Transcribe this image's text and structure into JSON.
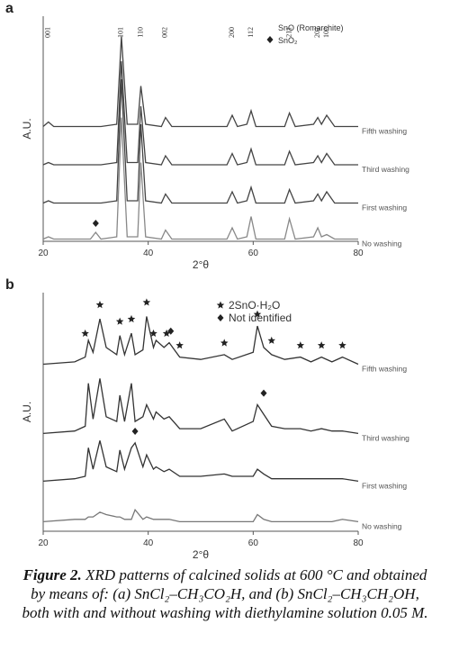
{
  "chart_data": [
    {
      "type": "line",
      "panel": "a",
      "x_label": "2°θ",
      "y_label": "A.U.",
      "xlim": [
        20,
        80
      ],
      "ylim": [
        0,
        100
      ],
      "xticks": [
        20,
        40,
        60,
        80
      ],
      "legend": [
        "SnO (Romarchite)",
        "SnO₂"
      ],
      "peak_labels": [
        {
          "text": "001",
          "x": 21
        },
        {
          "text": "101",
          "x": 34.9
        },
        {
          "text": "110",
          "x": 38.6
        },
        {
          "text": "002",
          "x": 43.3
        },
        {
          "text": "200",
          "x": 56
        },
        {
          "text": "112",
          "x": 59.6
        },
        {
          "text": "211",
          "x": 66.9
        },
        {
          "text": "202",
          "x": 72.3
        },
        {
          "text": "103",
          "x": 74
        }
      ],
      "markers": [
        {
          "x": 30,
          "y": 6,
          "shape": "diamond"
        }
      ],
      "x": [
        20,
        21,
        22,
        29,
        30,
        31,
        34,
        34.9,
        36,
        38,
        38.6,
        39.5,
        42.5,
        43.3,
        44.5,
        55,
        56,
        57,
        58.8,
        59.6,
        60.5,
        66,
        66.9,
        68,
        71.5,
        72.3,
        73,
        74,
        75.5,
        80
      ],
      "series": [
        {
          "name": "Fifth washing",
          "color": "#444444",
          "values": [
            51,
            53,
            51,
            51,
            51,
            51,
            52,
            91,
            52,
            52,
            69,
            52,
            51,
            55,
            51,
            51,
            56,
            51,
            52,
            58,
            51,
            51,
            57,
            51,
            52,
            55,
            52,
            56,
            51,
            51
          ]
        },
        {
          "name": "Third washing",
          "color": "#444444",
          "values": [
            34,
            35,
            34,
            34,
            34,
            34,
            35,
            80,
            35,
            35,
            60,
            35,
            34,
            38,
            34,
            34,
            39,
            34,
            35,
            41,
            34,
            34,
            40,
            34,
            35,
            38,
            35,
            39,
            34,
            34
          ]
        },
        {
          "name": "First washing",
          "color": "#444444",
          "values": [
            17,
            18,
            17,
            17,
            17,
            17,
            18,
            72,
            18,
            18,
            52,
            18,
            17,
            21,
            17,
            17,
            22,
            17,
            18,
            24,
            17,
            17,
            23,
            17,
            18,
            21,
            18,
            22,
            17,
            17
          ]
        },
        {
          "name": "No washing",
          "color": "#888888",
          "values": [
            1,
            2,
            1,
            1,
            4,
            1,
            2,
            55,
            2,
            2,
            35,
            2,
            1,
            5,
            1,
            1,
            6,
            1,
            2,
            11,
            1,
            1,
            10,
            1,
            2,
            6,
            2,
            3,
            1,
            1
          ]
        }
      ]
    },
    {
      "type": "line",
      "panel": "b",
      "x_label": "2°θ",
      "y_label": "A.U.",
      "xlim": [
        20,
        80
      ],
      "ylim": [
        0,
        100
      ],
      "xticks": [
        20,
        40,
        60,
        80
      ],
      "legend": [
        "2SnO·H₂O",
        "Not identified"
      ],
      "markers": [
        {
          "x": 28,
          "y": 81,
          "shape": "star"
        },
        {
          "x": 30.8,
          "y": 93,
          "shape": "star"
        },
        {
          "x": 34.6,
          "y": 86,
          "shape": "star"
        },
        {
          "x": 36.8,
          "y": 87,
          "shape": "star"
        },
        {
          "x": 39.7,
          "y": 94,
          "shape": "star"
        },
        {
          "x": 41,
          "y": 81,
          "shape": "star"
        },
        {
          "x": 43.5,
          "y": 81,
          "shape": "star"
        },
        {
          "x": 44.3,
          "y": 82,
          "shape": "diamond"
        },
        {
          "x": 46,
          "y": 76,
          "shape": "star"
        },
        {
          "x": 54.5,
          "y": 77,
          "shape": "star"
        },
        {
          "x": 60.8,
          "y": 89,
          "shape": "star"
        },
        {
          "x": 63.5,
          "y": 78,
          "shape": "star"
        },
        {
          "x": 69,
          "y": 76,
          "shape": "star"
        },
        {
          "x": 73,
          "y": 76,
          "shape": "star"
        },
        {
          "x": 77,
          "y": 76,
          "shape": "star"
        },
        {
          "x": 62,
          "y": 56,
          "shape": "diamond"
        },
        {
          "x": 37.5,
          "y": 40,
          "shape": "diamond"
        }
      ],
      "x": [
        20,
        26,
        28,
        28.6,
        29.5,
        30.8,
        32,
        34,
        34.6,
        35.5,
        36.8,
        37.5,
        39,
        39.7,
        41,
        41.5,
        43,
        44,
        46,
        50,
        54.5,
        56,
        60,
        60.8,
        62,
        63.5,
        66,
        69,
        71,
        73,
        75,
        77,
        80
      ],
      "series": [
        {
          "name": "Fifth washing",
          "color": "#333333",
          "values": [
            70,
            71,
            73,
            80,
            75,
            89,
            77,
            74,
            82,
            74,
            83,
            74,
            76,
            90,
            77,
            80,
            77,
            79,
            73,
            72,
            74,
            72,
            75,
            86,
            77,
            74,
            72,
            73,
            71,
            73,
            71,
            73,
            70
          ]
        },
        {
          "name": "Third washing",
          "color": "#333333",
          "values": [
            41,
            42,
            44,
            62,
            47,
            64,
            48,
            46,
            57,
            46,
            62,
            46,
            48,
            53,
            47,
            50,
            47,
            48,
            43,
            43,
            47,
            42,
            46,
            53,
            49,
            44,
            43,
            43,
            42,
            43,
            42,
            42,
            41
          ]
        },
        {
          "name": "First washing",
          "color": "#333333",
          "values": [
            21,
            22,
            23,
            35,
            26,
            38,
            27,
            25,
            34,
            26,
            35,
            37,
            27,
            32,
            26,
            27,
            25,
            26,
            23,
            23,
            24,
            23,
            23,
            26,
            24,
            22,
            22,
            22,
            22,
            22,
            22,
            22,
            21
          ]
        },
        {
          "name": "No washing",
          "color": "#777777",
          "values": [
            4,
            5,
            5,
            6,
            6,
            8,
            7,
            6,
            6,
            5,
            5,
            9,
            5,
            6,
            5,
            5,
            5,
            5,
            4,
            4,
            4,
            4,
            4,
            7,
            5,
            4,
            4,
            4,
            4,
            4,
            4,
            5,
            4
          ]
        }
      ]
    }
  ],
  "caption": {
    "label": "Figure 2.",
    "text": "XRD patterns of calcined solids at 600 °C and obtained by means of: (a) SnCl₂–CH₃CO₂H, and (b) SnCl₂–CH₃CH₂OH, both with and without washing with diethylamine solution 0.05 M."
  }
}
